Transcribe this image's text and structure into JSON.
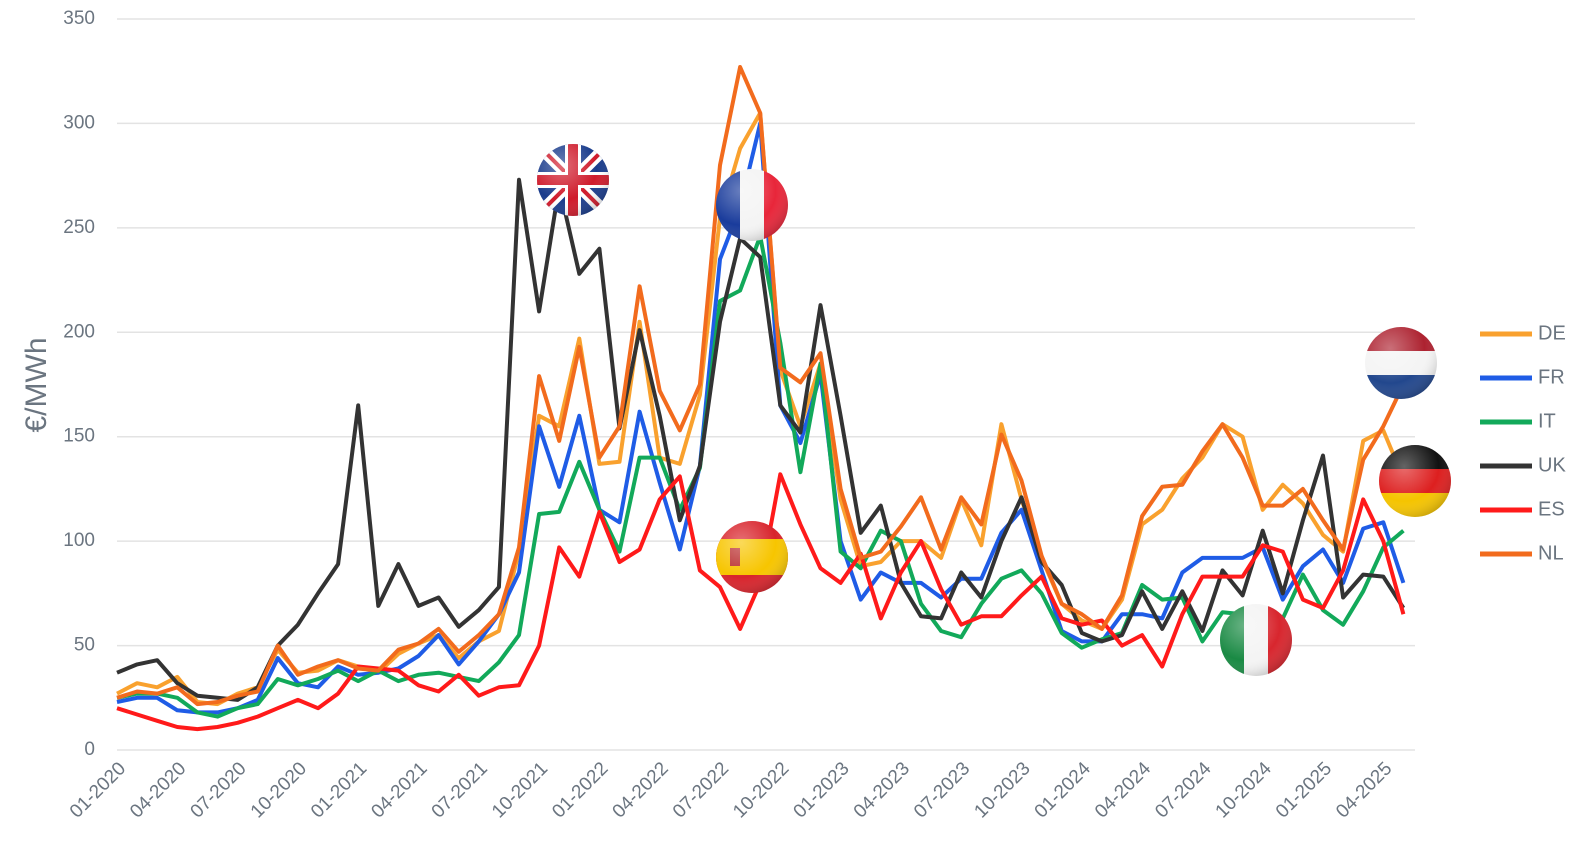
{
  "chart_data": {
    "type": "line",
    "ylabel": "€/MWh",
    "categories": [
      "01-2020",
      null,
      null,
      "04-2020",
      null,
      null,
      "07-2020",
      null,
      null,
      "10-2020",
      null,
      null,
      "01-2021",
      null,
      null,
      "04-2021",
      null,
      null,
      "07-2021",
      null,
      null,
      "10-2021",
      null,
      null,
      "01-2022",
      null,
      null,
      "04-2022",
      null,
      null,
      "07-2022",
      null,
      null,
      "10-2022",
      null,
      null,
      "01-2023",
      null,
      null,
      "04-2023",
      null,
      null,
      "07-2023",
      null,
      null,
      "10-2023",
      null,
      null,
      "01-2024",
      null,
      null,
      "04-2024",
      null,
      null,
      "07-2024",
      null,
      null,
      "10-2024",
      null,
      null,
      "01-2025",
      null,
      null,
      "04-2025",
      null
    ],
    "ylim": [
      0,
      350
    ],
    "yticks": [
      0,
      50,
      100,
      150,
      200,
      250,
      300,
      350
    ],
    "grid": true,
    "legend": "right",
    "series": [
      {
        "name": "DE",
        "color": "#f9a12e",
        "values": [
          27,
          32,
          30,
          35,
          23,
          22,
          27,
          30,
          48,
          37,
          38,
          43,
          40,
          37,
          46,
          51,
          55,
          44,
          52,
          57,
          95,
          160,
          155,
          197,
          137,
          138,
          205,
          140,
          137,
          170,
          255,
          288,
          305,
          182,
          155,
          185,
          120,
          88,
          90,
          100,
          100,
          92,
          120,
          98,
          156,
          120,
          92,
          70,
          62,
          58,
          72,
          108,
          115,
          130,
          140,
          156,
          150,
          115,
          127,
          118,
          103,
          95,
          148,
          153,
          130
        ]
      },
      {
        "name": "FR",
        "color": "#1f5ce6",
        "values": [
          23,
          25,
          25,
          19,
          18,
          18,
          20,
          24,
          44,
          32,
          30,
          40,
          36,
          37,
          39,
          45,
          55,
          41,
          52,
          65,
          85,
          155,
          126,
          160,
          115,
          109,
          162,
          128,
          96,
          136,
          235,
          260,
          300,
          165,
          147,
          180,
          100,
          72,
          85,
          80,
          80,
          73,
          82,
          82,
          104,
          115,
          86,
          57,
          52,
          52,
          65,
          65,
          63,
          85,
          92,
          92,
          92,
          97,
          72,
          88,
          96,
          80,
          106,
          109,
          80
        ]
      },
      {
        "name": "IT",
        "color": "#12a95a",
        "values": [
          25,
          27,
          27,
          25,
          18,
          16,
          20,
          22,
          34,
          31,
          34,
          38,
          33,
          38,
          33,
          36,
          37,
          35,
          33,
          42,
          55,
          113,
          114,
          138,
          115,
          95,
          140,
          140,
          115,
          135,
          215,
          220,
          246,
          195,
          133,
          185,
          95,
          87,
          105,
          100,
          70,
          57,
          54,
          70,
          82,
          86,
          75,
          56,
          49,
          53,
          56,
          79,
          72,
          73,
          52,
          66,
          65,
          55,
          63,
          84,
          67,
          60,
          76,
          97,
          105
        ]
      },
      {
        "name": "UK",
        "color": "#333333",
        "values": [
          37,
          41,
          43,
          32,
          26,
          25,
          24,
          30,
          50,
          60,
          75,
          89,
          165,
          69,
          89,
          69,
          73,
          59,
          67,
          78,
          273,
          210,
          270,
          228,
          240,
          154,
          201,
          160,
          110,
          136,
          205,
          245,
          236,
          165,
          152,
          213,
          160,
          104,
          117,
          80,
          64,
          63,
          85,
          73,
          100,
          121,
          90,
          79,
          56,
          52,
          55,
          76,
          58,
          76,
          57,
          86,
          74,
          105,
          75,
          110,
          141,
          73,
          84,
          83,
          68
        ]
      },
      {
        "name": "ES",
        "color": "#ff1a1a",
        "values": [
          20,
          17,
          14,
          11,
          10,
          11,
          13,
          16,
          20,
          24,
          20,
          27,
          40,
          39,
          38,
          31,
          28,
          36,
          26,
          30,
          31,
          50,
          97,
          83,
          114,
          90,
          96,
          120,
          131,
          86,
          78,
          58,
          80,
          132,
          108,
          87,
          80,
          94,
          63,
          85,
          100,
          77,
          60,
          64,
          64,
          74,
          83,
          63,
          60,
          62,
          50,
          55,
          40,
          65,
          83,
          83,
          83,
          98,
          95,
          72,
          68,
          86,
          120,
          100,
          65
        ]
      },
      {
        "name": "NL",
        "color": "#f26b1d",
        "values": [
          25,
          28,
          27,
          30,
          22,
          23,
          26,
          28,
          50,
          36,
          40,
          43,
          39,
          38,
          48,
          51,
          58,
          47,
          55,
          65,
          97,
          179,
          148,
          193,
          140,
          155,
          222,
          172,
          153,
          175,
          280,
          327,
          305,
          183,
          176,
          190,
          125,
          92,
          95,
          107,
          121,
          96,
          121,
          108,
          151,
          129,
          93,
          70,
          65,
          58,
          74,
          112,
          126,
          127,
          143,
          156,
          140,
          117,
          117,
          125,
          110,
          96,
          139,
          155,
          175
        ]
      }
    ]
  }
}
